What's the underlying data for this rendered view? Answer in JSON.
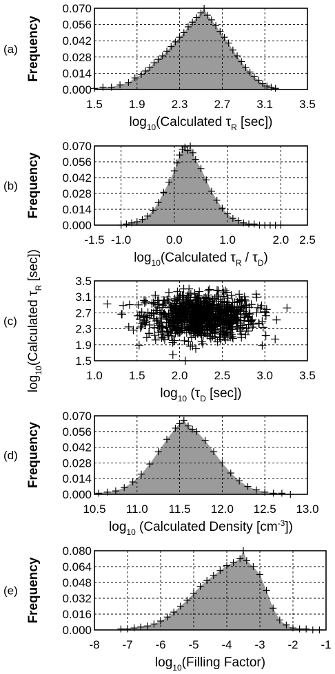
{
  "chart_data": [
    {
      "type": "area",
      "panel_label": "(a)",
      "ylabel": "Frequency",
      "xlabel": {
        "pre": "log",
        "sub": "10",
        "mid": "(Calculated τ",
        "sub2": "R",
        "post": " [sec])"
      },
      "xlim": [
        1.5,
        3.5
      ],
      "ylim": [
        0.0,
        0.07
      ],
      "xticks": [
        "1.5",
        "1.9",
        "2.3",
        "2.7",
        "3.1",
        "3.5"
      ],
      "yticks": [
        "0.000",
        "0.014",
        "0.028",
        "0.042",
        "0.056",
        "0.070"
      ],
      "grid": true,
      "points": {
        "x": [
          1.5,
          1.58,
          1.66,
          1.74,
          1.82,
          1.88,
          1.94,
          1.98,
          2.02,
          2.06,
          2.1,
          2.14,
          2.18,
          2.22,
          2.26,
          2.3,
          2.34,
          2.38,
          2.42,
          2.46,
          2.5,
          2.53,
          2.56,
          2.6,
          2.64,
          2.68,
          2.72,
          2.76,
          2.8,
          2.84,
          2.88,
          2.92,
          2.96,
          3.0,
          3.04,
          3.08,
          3.12,
          3.16,
          3.2
        ],
        "y": [
          0.001,
          0.002,
          0.002,
          0.004,
          0.006,
          0.01,
          0.013,
          0.016,
          0.019,
          0.023,
          0.026,
          0.029,
          0.033,
          0.037,
          0.041,
          0.045,
          0.049,
          0.054,
          0.058,
          0.062,
          0.066,
          0.07,
          0.064,
          0.06,
          0.055,
          0.05,
          0.045,
          0.04,
          0.034,
          0.029,
          0.024,
          0.019,
          0.015,
          0.011,
          0.008,
          0.005,
          0.003,
          0.002,
          0.001
        ]
      }
    },
    {
      "type": "area",
      "panel_label": "(b)",
      "ylabel": "Frequency",
      "xlabel": {
        "pre": "log",
        "sub": "10",
        "mid": "(Calculated τ",
        "sub2": "R",
        "post": " / τ",
        "sub3": "D",
        "post2": ")"
      },
      "xlim": [
        -1.5,
        2.5
      ],
      "ylim": [
        0.0,
        0.07
      ],
      "xticks": [
        "-1.5",
        "-1.0",
        "0.0",
        "1.0",
        "2.0",
        "2.5"
      ],
      "xtick_values": [
        -1.5,
        -1.0,
        0.0,
        1.0,
        2.0,
        2.5
      ],
      "yticks": [
        "0.000",
        "0.014",
        "0.028",
        "0.042",
        "0.056",
        "0.070"
      ],
      "grid": true,
      "points": {
        "x": [
          -1.0,
          -0.9,
          -0.8,
          -0.7,
          -0.6,
          -0.5,
          -0.4,
          -0.3,
          -0.2,
          -0.1,
          0.0,
          0.05,
          0.1,
          0.15,
          0.2,
          0.25,
          0.3,
          0.35,
          0.4,
          0.5,
          0.6,
          0.7,
          0.8,
          0.9,
          1.0,
          1.1,
          1.2,
          1.3,
          1.4,
          1.5,
          1.6,
          1.7,
          1.8,
          1.9,
          2.0
        ],
        "y": [
          0.0,
          0.001,
          0.002,
          0.003,
          0.005,
          0.008,
          0.013,
          0.02,
          0.029,
          0.038,
          0.048,
          0.055,
          0.062,
          0.067,
          0.069,
          0.066,
          0.07,
          0.064,
          0.058,
          0.05,
          0.04,
          0.03,
          0.022,
          0.015,
          0.01,
          0.006,
          0.004,
          0.002,
          0.001,
          0.001,
          0.0,
          0.0,
          0.0,
          0.0,
          0.0
        ]
      }
    },
    {
      "type": "scatter",
      "panel_label": "(c)",
      "ylabel": {
        "pre": "log",
        "sub": "10",
        "mid": "(Calculated τ",
        "sub2": "R",
        "post": " [sec])"
      },
      "xlabel": {
        "pre": "log",
        "sub": "10",
        "mid": " (τ",
        "sub2": "D",
        "post": " [sec])"
      },
      "xlim": [
        1.0,
        3.5
      ],
      "ylim": [
        1.5,
        3.5
      ],
      "xticks": [
        "1.0",
        "1.5",
        "2.0",
        "2.5",
        "3.0",
        "3.5"
      ],
      "yticks": [
        "1.5",
        "1.9",
        "2.3",
        "2.7",
        "3.1",
        "3.5"
      ],
      "grid": true,
      "cloud": {
        "x_center": 2.25,
        "x_spread": 0.32,
        "x_min": 1.15,
        "x_max": 3.35,
        "y_center": 2.6,
        "y_spread": 0.28,
        "y_min": 1.5,
        "y_max": 3.3,
        "n": 900
      }
    },
    {
      "type": "area",
      "panel_label": "(d)",
      "ylabel": "Frequency",
      "xlabel": {
        "pre": "log",
        "sub": "10",
        "mid": " (Calculated Density [cm",
        "sup": "-3",
        "post": "])"
      },
      "xlim": [
        10.5,
        13.0
      ],
      "ylim": [
        0.0,
        0.07
      ],
      "xticks": [
        "10.5",
        "11.0",
        "11.5",
        "12.0",
        "12.5",
        "13.0"
      ],
      "yticks": [
        "0.000",
        "0.014",
        "0.028",
        "0.042",
        "0.056",
        "0.070"
      ],
      "grid": true,
      "points": {
        "x": [
          10.55,
          10.65,
          10.75,
          10.85,
          10.95,
          11.05,
          11.15,
          11.25,
          11.35,
          11.45,
          11.5,
          11.55,
          11.6,
          11.65,
          11.7,
          11.8,
          11.9,
          12.0,
          12.1,
          12.2,
          12.3,
          12.4,
          12.5,
          12.6,
          12.7,
          12.8
        ],
        "y": [
          0.001,
          0.002,
          0.003,
          0.006,
          0.011,
          0.018,
          0.027,
          0.038,
          0.049,
          0.059,
          0.063,
          0.066,
          0.061,
          0.058,
          0.056,
          0.048,
          0.038,
          0.028,
          0.019,
          0.012,
          0.007,
          0.004,
          0.002,
          0.001,
          0.001,
          0.0
        ]
      }
    },
    {
      "type": "area",
      "panel_label": "(e)",
      "ylabel": "Frequency",
      "xlabel": {
        "pre": "log",
        "sub": "10",
        "mid": "(Filling Factor)"
      },
      "xlim": [
        -8,
        -1
      ],
      "ylim": [
        0.0,
        0.08
      ],
      "xticks": [
        "-8",
        "-7",
        "-6",
        "-5",
        "-4",
        "-3",
        "-2",
        "-1"
      ],
      "yticks": [
        "0.000",
        "0.016",
        "0.032",
        "0.048",
        "0.064",
        "0.080"
      ],
      "grid": true,
      "points": {
        "x": [
          -7.2,
          -7.0,
          -6.8,
          -6.6,
          -6.4,
          -6.2,
          -6.0,
          -5.8,
          -5.6,
          -5.4,
          -5.2,
          -5.0,
          -4.8,
          -4.6,
          -4.4,
          -4.2,
          -4.0,
          -3.8,
          -3.6,
          -3.5,
          -3.4,
          -3.2,
          -3.0,
          -2.8,
          -2.6,
          -2.4,
          -2.2,
          -2.0,
          -1.8,
          -1.6,
          -1.4,
          -1.2
        ],
        "y": [
          0.001,
          0.001,
          0.002,
          0.003,
          0.004,
          0.006,
          0.009,
          0.013,
          0.018,
          0.024,
          0.03,
          0.037,
          0.044,
          0.05,
          0.055,
          0.06,
          0.065,
          0.068,
          0.072,
          0.08,
          0.07,
          0.064,
          0.056,
          0.04,
          0.022,
          0.01,
          0.005,
          0.002,
          0.001,
          0.001,
          0.0,
          0.0
        ]
      }
    }
  ]
}
